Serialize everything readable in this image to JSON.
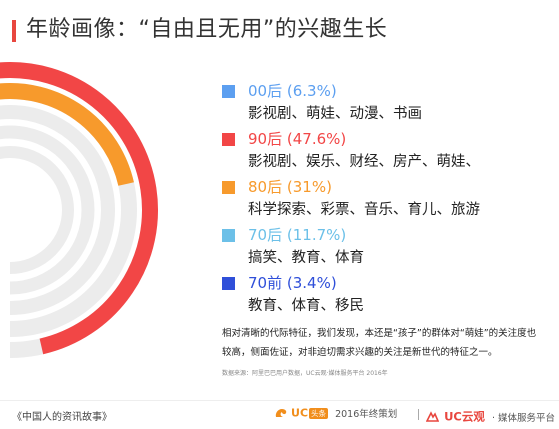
{
  "title": "年龄画像：“自由且无用”的兴趣生长",
  "chart_data": {
    "type": "radial-bar",
    "unit": "%",
    "series": [
      {
        "name": "90后",
        "value": 47.6,
        "color": "#f24646",
        "desc": "影视剧、娱乐、财经、房产、萌娃、"
      },
      {
        "name": "80后",
        "value": 31,
        "color": "#f79a2c",
        "desc": "科学探索、彩票、音乐、育儿、旅游"
      },
      {
        "name": "70后",
        "value": 11.7,
        "color": "#6cc0e8",
        "desc": "搞笑、教育、体育"
      },
      {
        "name": "00后",
        "value": 6.3,
        "color": "#5c9ff0",
        "desc": "影视剧、萌娃、动漫、书画"
      },
      {
        "name": "70前",
        "value": 3.4,
        "color": "#2f4fd9",
        "desc": "教育、体育、移民"
      }
    ],
    "track_color": "#ececec"
  },
  "legend": [
    {
      "label": "00后",
      "pct": "(6.3%)",
      "color": "#5c9ff0",
      "desc": "影视剧、萌娃、动漫、书画"
    },
    {
      "label": "90后",
      "pct": "(47.6%)",
      "color": "#f24646",
      "desc": "影视剧、娱乐、财经、房产、萌娃、"
    },
    {
      "label": "80后",
      "pct": "(31%)",
      "color": "#f79a2c",
      "desc": "科学探索、彩票、音乐、育儿、旅游"
    },
    {
      "label": "70后",
      "pct": "(11.7%)",
      "color": "#6cc0e8",
      "desc": "搞笑、教育、体育"
    },
    {
      "label": "70前",
      "pct": "(3.4%)",
      "color": "#2f4fd9",
      "desc": "教育、体育、移民"
    }
  ],
  "note": "相对清晰的代际特征，我们发现，本还是“孩子”的群体对“萌娃”的关注度也较高，侧面佐证，对非迫切需求兴趣的关注是新世代的特征之一。",
  "source": "数据来源：阿里巴巴用户数据，UC云观·媒体服务平台 2016年",
  "footer": {
    "book": "《中国人的资讯故事》",
    "uc_text": "UC",
    "uc_badge": "头条",
    "uc_sub": "2016年终策划",
    "yun_text": "UC云观",
    "yun_sub": "· 媒体服务平台"
  },
  "colors": {
    "accent": "#e8473f",
    "uc_orange": "#f18e1c"
  }
}
